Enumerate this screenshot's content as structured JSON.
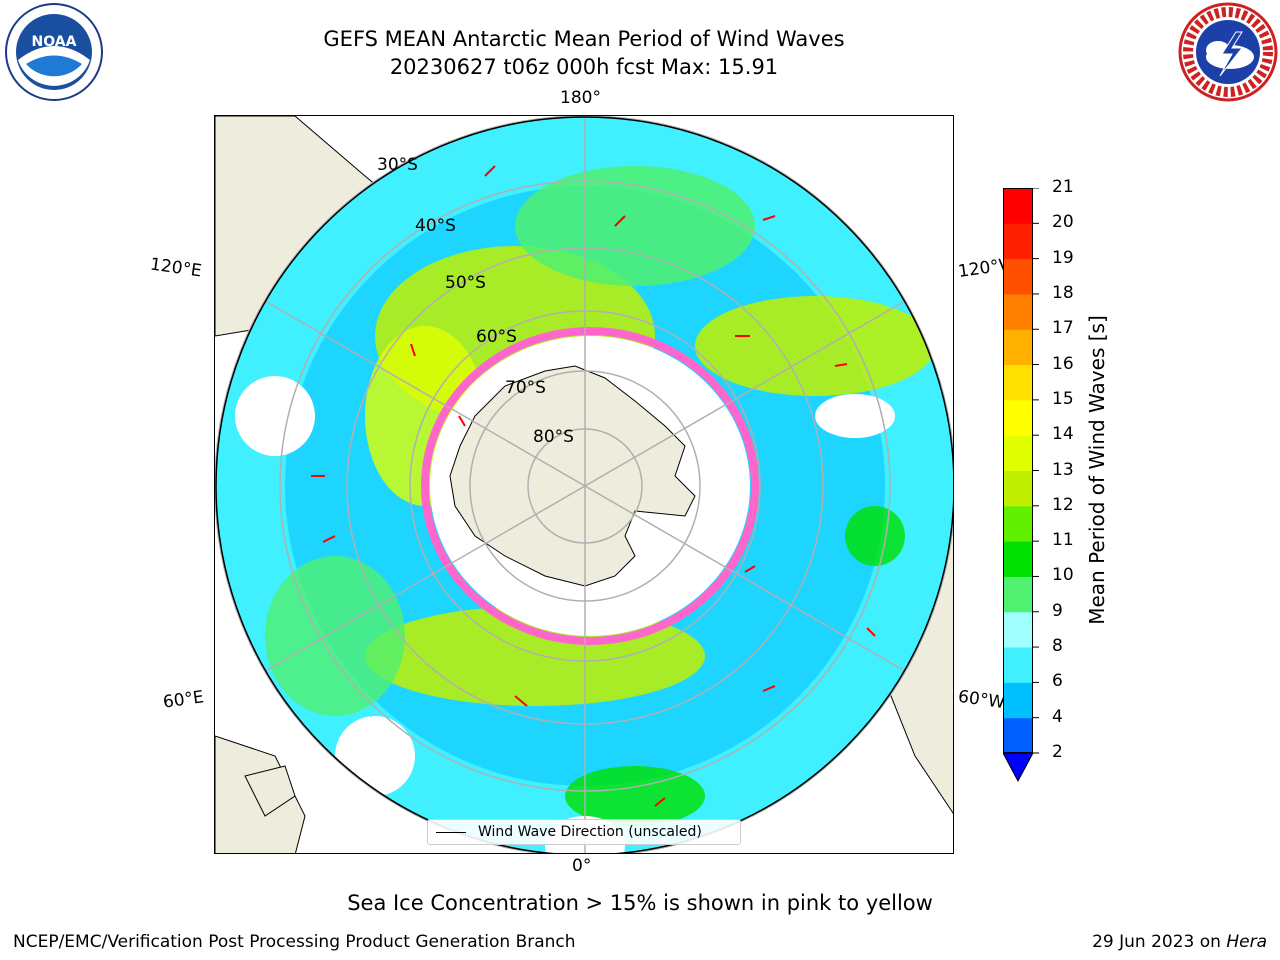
{
  "header": {
    "title_line1": "GEFS MEAN Antarctic Mean Period of Wind Waves",
    "title_line2": "20230627 t06z 000h fcst   Max: 15.91"
  },
  "logos": {
    "left": {
      "name": "noaa-logo",
      "text": "NOAA"
    },
    "right": {
      "name": "national-weather-service-logo"
    }
  },
  "map": {
    "projection": "south-polar-stereographic",
    "longitude_labels": {
      "top": "180°",
      "bottom": "0°",
      "upper_left": "120°E",
      "upper_right": "120°W",
      "lower_left": "60°E",
      "lower_right": "60°W"
    },
    "latitude_labels": [
      "30°S",
      "40°S",
      "50°S",
      "60°S",
      "70°S",
      "80°S"
    ],
    "legend_label": "Wind Wave Direction (unscaled)",
    "colors": {
      "land": "#eeecdc",
      "ocean_nodata": "#ffffff",
      "grid": "#b0b0b0",
      "arrow": "#ff0000",
      "sea_ice": "#ff66cc"
    }
  },
  "colorbar": {
    "label": "Mean Period of Wind Waves [s]",
    "ticks": [
      "2",
      "4",
      "6",
      "8",
      "9",
      "10",
      "11",
      "12",
      "13",
      "14",
      "15",
      "16",
      "17",
      "18",
      "19",
      "20",
      "21"
    ],
    "colors": [
      "#0060ff",
      "#00c0ff",
      "#40f0ff",
      "#a0ffff",
      "#50f070",
      "#00e000",
      "#60f000",
      "#c0f000",
      "#e0ff00",
      "#ffff00",
      "#ffe000",
      "#ffb000",
      "#ff8000",
      "#ff5000",
      "#ff2000",
      "#ff0000"
    ],
    "under_color": "#0000ff"
  },
  "note": "Sea Ice Concentration > 15% is shown in pink to yellow",
  "footer": {
    "left": "NCEP/EMC/Verification Post Processing Product Generation Branch",
    "right_prefix": "29 Jun 2023 on ",
    "right_host": "Hera"
  }
}
